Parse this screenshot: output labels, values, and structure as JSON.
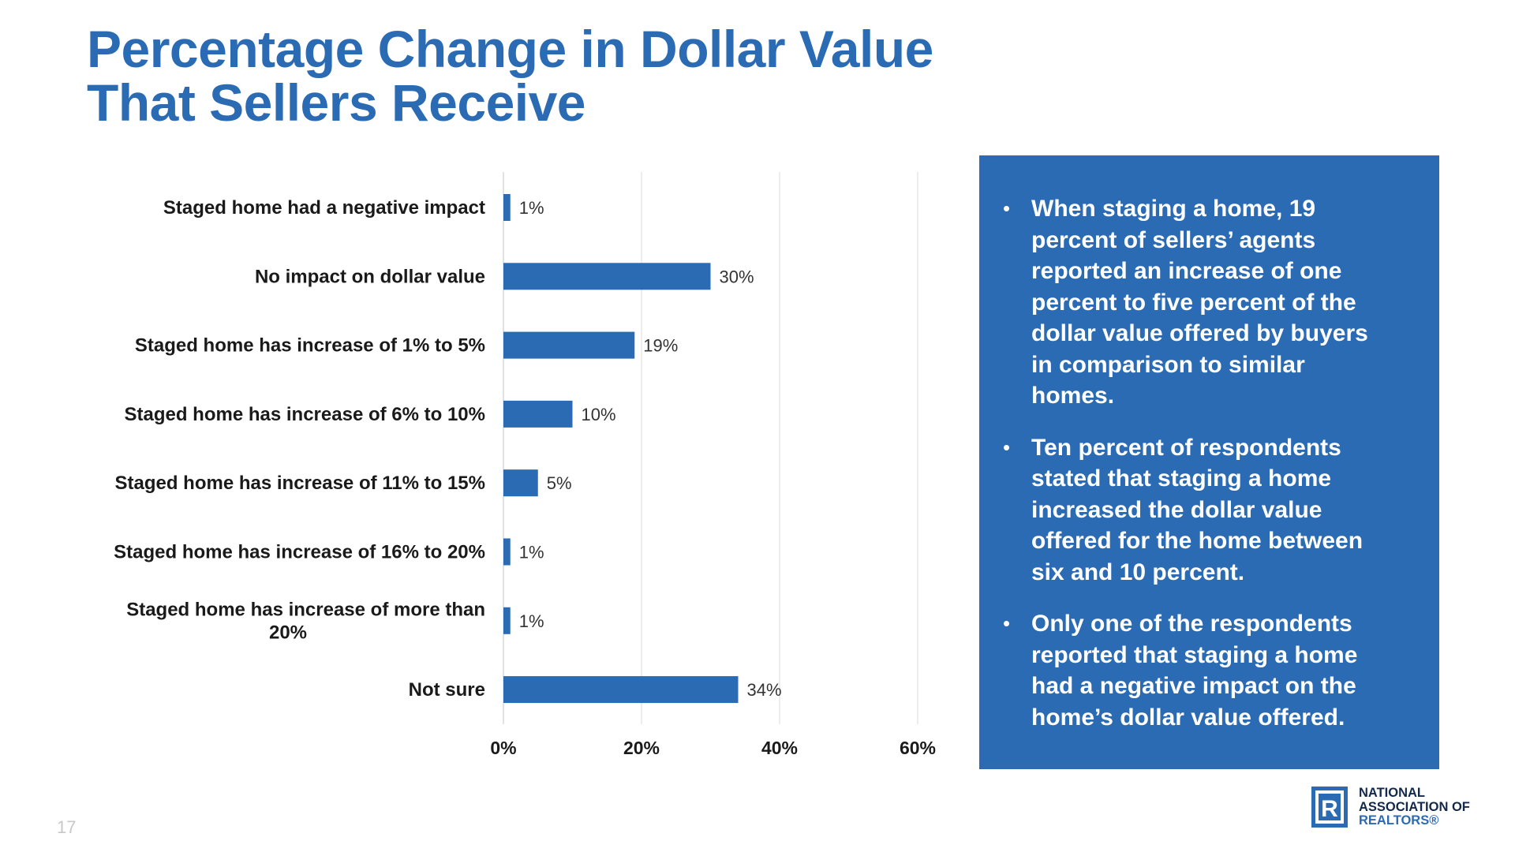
{
  "title_lines": [
    "Percentage Change in Dollar Value",
    "That Sellers Receive"
  ],
  "chart_data": {
    "type": "bar",
    "orientation": "horizontal",
    "categories": [
      [
        "Staged home had a negative impact"
      ],
      [
        "No impact on dollar value"
      ],
      [
        "Staged home has increase of 1% to 5%"
      ],
      [
        "Staged home has increase of 6% to 10%"
      ],
      [
        "Staged home has increase of 11% to 15%"
      ],
      [
        "Staged home has increase of 16% to 20%"
      ],
      [
        "Staged home has increase of more than",
        "20%"
      ],
      [
        "Not sure"
      ]
    ],
    "values": [
      1,
      30,
      19,
      10,
      5,
      1,
      1,
      34
    ],
    "value_labels": [
      "1%",
      "30%",
      "19%",
      "10%",
      "5%",
      "1%",
      "1%",
      "34%"
    ],
    "xlim": [
      0,
      60
    ],
    "xticks": [
      0,
      20,
      40,
      60
    ],
    "xtick_labels": [
      "0%",
      "20%",
      "40%",
      "60%"
    ],
    "grid": "vertical",
    "bar_color": "#2A6BB4"
  },
  "panel": {
    "background": "#2A6BB4",
    "bullet_glyph": "•",
    "bullets": [
      {
        "lines": [
          "When staging a home, 19",
          "percent of sellers’ agents",
          "reported an increase of one",
          "percent to five percent of the",
          "dollar value offered by buyers",
          "in comparison to similar",
          "homes."
        ]
      },
      {
        "lines": [
          "Ten percent of respondents",
          "stated that staging a home",
          "increased the dollar value",
          "offered for the home between",
          "six and 10 percent."
        ]
      },
      {
        "lines": [
          "Only one of the respondents",
          "reported that staging a home",
          "had a negative impact on the",
          "home’s dollar value offered."
        ]
      }
    ]
  },
  "page_number": "17",
  "logo": {
    "mark_letter": "R",
    "text_lines": [
      "NATIONAL",
      "ASSOCIATION OF",
      "REALTORS®"
    ]
  }
}
